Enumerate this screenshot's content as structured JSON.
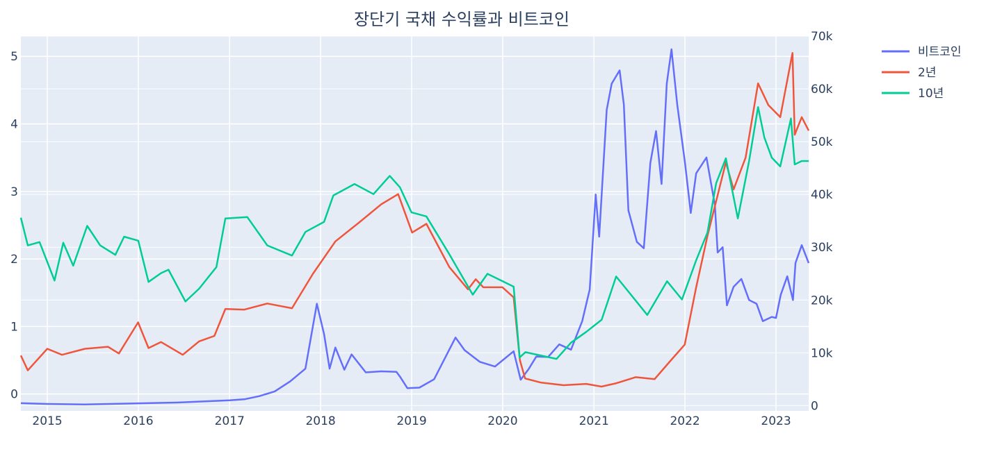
{
  "chart_data": {
    "type": "line",
    "title": "장단기 국채 수익률과 비트코인",
    "x_range": [
      "2014-09-17",
      "2023-05-12"
    ],
    "x_ticks": [
      "2015",
      "2016",
      "2017",
      "2018",
      "2019",
      "2020",
      "2021",
      "2022",
      "2023"
    ],
    "y_left": {
      "range": [
        -0.25,
        5.3
      ],
      "ticks": [
        0,
        1,
        2,
        3,
        4,
        5
      ]
    },
    "y_right": {
      "range": [
        -1000,
        70000
      ],
      "ticks": [
        "0",
        "10k",
        "20k",
        "30k",
        "40k",
        "50k",
        "60k",
        "70k"
      ]
    },
    "legend_position": "top-right",
    "background": "#e5ecf6",
    "grid": true,
    "series": [
      {
        "name": "비트코인",
        "color": "#636efa",
        "axis": "right",
        "x": [
          "2014-09-17",
          "2015-01-01",
          "2015-06-01",
          "2016-01-01",
          "2016-06-01",
          "2017-01-01",
          "2017-03-01",
          "2017-05-01",
          "2017-07-01",
          "2017-09-01",
          "2017-11-01",
          "2017-12-17",
          "2018-01-15",
          "2018-02-06",
          "2018-03-01",
          "2018-04-06",
          "2018-05-05",
          "2018-07-01",
          "2018-09-01",
          "2018-11-01",
          "2018-11-15",
          "2018-12-15",
          "2019-02-01",
          "2019-04-01",
          "2019-06-26",
          "2019-08-01",
          "2019-10-01",
          "2019-12-01",
          "2020-02-14",
          "2020-03-13",
          "2020-04-15",
          "2020-05-15",
          "2020-07-01",
          "2020-08-15",
          "2020-10-01",
          "2020-11-15",
          "2020-12-15",
          "2021-01-08",
          "2021-01-22",
          "2021-02-21",
          "2021-03-13",
          "2021-04-14",
          "2021-05-01",
          "2021-05-19",
          "2021-06-22",
          "2021-07-20",
          "2021-08-15",
          "2021-09-07",
          "2021-09-29",
          "2021-10-20",
          "2021-11-08",
          "2021-12-01",
          "2022-01-01",
          "2022-01-24",
          "2022-02-15",
          "2022-03-28",
          "2022-05-01",
          "2022-05-12",
          "2022-06-01",
          "2022-06-18",
          "2022-07-15",
          "2022-08-15",
          "2022-09-15",
          "2022-10-15",
          "2022-11-09",
          "2022-12-15",
          "2023-01-01",
          "2023-01-20",
          "2023-02-15",
          "2023-03-10",
          "2023-03-20",
          "2023-04-14",
          "2023-05-12"
        ],
        "values": [
          457,
          314,
          225,
          430,
          580,
          998,
          1200,
          1800,
          2700,
          4600,
          7000,
          19300,
          13500,
          7000,
          11000,
          6800,
          9700,
          6300,
          6500,
          6400,
          5500,
          3300,
          3400,
          5000,
          12900,
          10500,
          8300,
          7400,
          10300,
          4900,
          7000,
          9300,
          9200,
          11600,
          10600,
          16000,
          22000,
          40000,
          32000,
          56000,
          61000,
          63500,
          57000,
          37000,
          31000,
          29800,
          46000,
          52000,
          42000,
          61000,
          67500,
          57000,
          46000,
          36500,
          44000,
          47000,
          38000,
          29000,
          30000,
          19000,
          22500,
          24000,
          20000,
          19300,
          16000,
          16800,
          16600,
          21000,
          24500,
          20000,
          27000,
          30400,
          27000
        ]
      },
      {
        "name": "2년",
        "color": "#ef553b",
        "axis": "left",
        "x": [
          "2014-09-17",
          "2014-10-15",
          "2015-01-01",
          "2015-03-01",
          "2015-06-01",
          "2015-09-01",
          "2015-10-15",
          "2015-12-31",
          "2016-02-11",
          "2016-04-01",
          "2016-06-27",
          "2016-09-01",
          "2016-11-01",
          "2016-12-15",
          "2017-03-01",
          "2017-06-01",
          "2017-09-08",
          "2017-12-01",
          "2018-03-01",
          "2018-06-01",
          "2018-09-01",
          "2018-11-08",
          "2019-01-03",
          "2019-03-01",
          "2019-06-01",
          "2019-08-15",
          "2019-09-15",
          "2019-10-15",
          "2019-12-31",
          "2020-02-14",
          "2020-03-10",
          "2020-03-31",
          "2020-06-01",
          "2020-09-01",
          "2020-12-01",
          "2021-01-31",
          "2021-04-01",
          "2021-06-17",
          "2021-09-01",
          "2021-11-01",
          "2021-12-31",
          "2022-02-15",
          "2022-04-01",
          "2022-06-14",
          "2022-07-15",
          "2022-09-01",
          "2022-10-21",
          "2022-12-01",
          "2023-01-18",
          "2023-03-08",
          "2023-03-17",
          "2023-04-14",
          "2023-05-12"
        ],
        "values": [
          0.57,
          0.35,
          0.67,
          0.58,
          0.67,
          0.7,
          0.6,
          1.06,
          0.68,
          0.77,
          0.58,
          0.78,
          0.86,
          1.26,
          1.25,
          1.34,
          1.27,
          1.78,
          2.26,
          2.53,
          2.81,
          2.96,
          2.39,
          2.52,
          1.88,
          1.55,
          1.7,
          1.58,
          1.58,
          1.43,
          0.5,
          0.23,
          0.17,
          0.13,
          0.15,
          0.11,
          0.16,
          0.25,
          0.22,
          0.48,
          0.73,
          1.58,
          2.34,
          3.43,
          3.03,
          3.5,
          4.6,
          4.28,
          4.1,
          5.05,
          3.84,
          4.1,
          3.9
        ]
      },
      {
        "name": "10년",
        "color": "#00cc96",
        "axis": "left",
        "x": [
          "2014-09-17",
          "2014-10-15",
          "2014-12-01",
          "2015-01-30",
          "2015-03-06",
          "2015-04-15",
          "2015-06-10",
          "2015-08-01",
          "2015-10-01",
          "2015-11-05",
          "2016-01-01",
          "2016-02-11",
          "2016-04-01",
          "2016-05-01",
          "2016-07-08",
          "2016-09-01",
          "2016-11-09",
          "2016-12-15",
          "2017-03-13",
          "2017-06-01",
          "2017-09-08",
          "2017-11-01",
          "2018-01-15",
          "2018-02-21",
          "2018-05-17",
          "2018-08-01",
          "2018-10-05",
          "2018-11-15",
          "2018-12-31",
          "2019-03-01",
          "2019-06-01",
          "2019-09-03",
          "2019-11-01",
          "2020-02-14",
          "2020-03-09",
          "2020-04-01",
          "2020-08-04",
          "2020-10-01",
          "2020-12-01",
          "2021-02-01",
          "2021-03-31",
          "2021-05-01",
          "2021-08-03",
          "2021-10-21",
          "2021-12-20",
          "2022-02-15",
          "2022-04-01",
          "2022-05-06",
          "2022-06-14",
          "2022-08-01",
          "2022-09-15",
          "2022-10-21",
          "2022-11-15",
          "2022-12-15",
          "2023-01-18",
          "2023-03-02",
          "2023-03-17",
          "2023-04-14",
          "2023-05-12"
        ],
        "values": [
          2.61,
          2.2,
          2.25,
          1.68,
          2.24,
          1.9,
          2.49,
          2.2,
          2.06,
          2.33,
          2.27,
          1.66,
          1.79,
          1.84,
          1.37,
          1.56,
          1.88,
          2.6,
          2.62,
          2.2,
          2.05,
          2.4,
          2.55,
          2.94,
          3.11,
          2.96,
          3.23,
          3.06,
          2.69,
          2.63,
          2.07,
          1.47,
          1.78,
          1.59,
          0.54,
          0.62,
          0.52,
          0.76,
          0.92,
          1.1,
          1.74,
          1.6,
          1.17,
          1.67,
          1.4,
          1.98,
          2.39,
          3.12,
          3.49,
          2.6,
          3.45,
          4.25,
          3.8,
          3.5,
          3.37,
          4.08,
          3.4,
          3.45,
          3.45
        ]
      }
    ]
  }
}
